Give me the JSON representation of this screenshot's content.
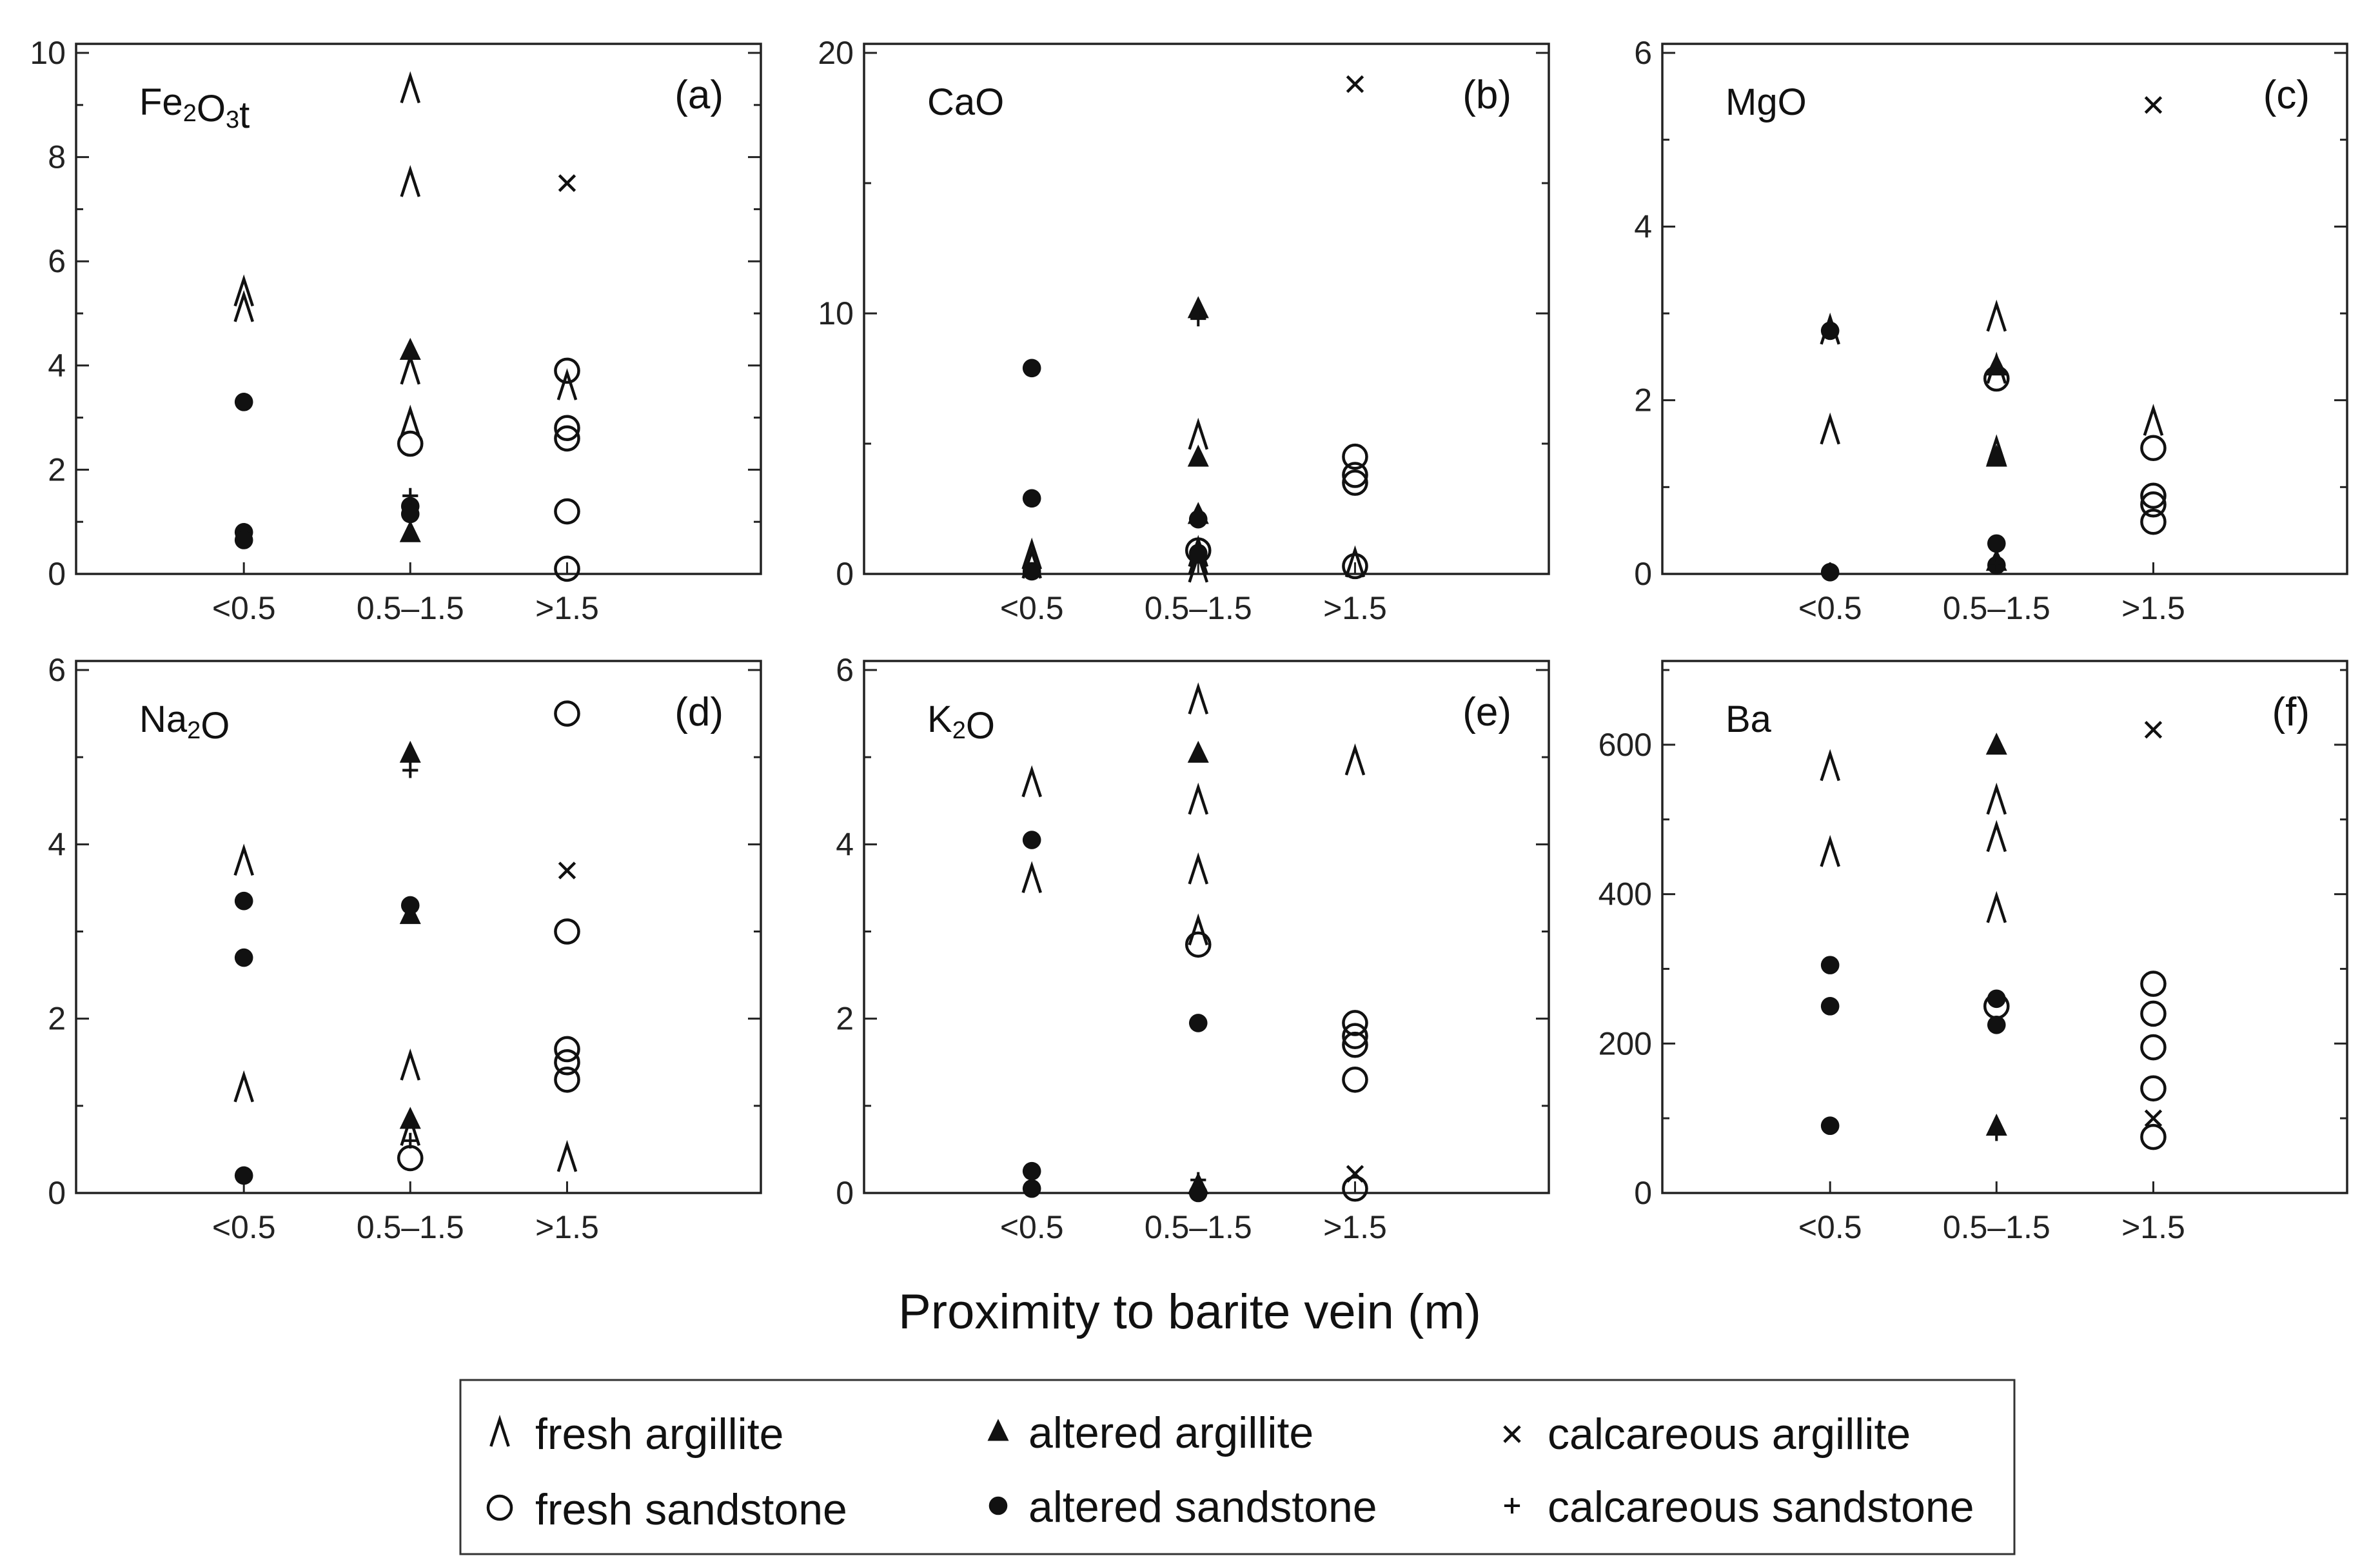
{
  "figure": {
    "xlabel": "Proximity to barite vein (m)",
    "categories": [
      "<0.5",
      "0.5–1.5",
      ">1.5"
    ]
  },
  "legend": [
    {
      "id": "fresh_argillite",
      "label": "fresh argillite",
      "symbol": "caret"
    },
    {
      "id": "altered_argillite",
      "label": "altered argillite",
      "symbol": "filled-triangle"
    },
    {
      "id": "calcareous_argillite",
      "label": "calcareous argillite",
      "symbol": "cross"
    },
    {
      "id": "fresh_sandstone",
      "label": "fresh sandstone",
      "symbol": "open-circle"
    },
    {
      "id": "altered_sandstone",
      "label": "altered sandstone",
      "symbol": "filled-circle"
    },
    {
      "id": "calcareous_sandstone",
      "label": "calcareous sandstone",
      "symbol": "plus"
    }
  ],
  "chart_data": [
    {
      "type": "scatter",
      "panel": "(a)",
      "title": "Fe2O3t",
      "title_parts": [
        {
          "t": "Fe"
        },
        {
          "t": "2",
          "sub": true
        },
        {
          "t": "O"
        },
        {
          "t": "3",
          "sub": true
        },
        {
          "t": "t"
        }
      ],
      "ylim": [
        0,
        10
      ],
      "yticks_major": [
        0,
        2,
        4,
        6,
        8,
        10
      ],
      "yticks_minor": [
        1,
        3,
        5,
        7,
        9
      ],
      "series": [
        {
          "name": "fresh argillite",
          "points": [
            [
              0,
              5.4
            ],
            [
              0,
              5.1
            ],
            [
              1,
              9.3
            ],
            [
              1,
              7.5
            ],
            [
              1,
              3.9
            ],
            [
              1,
              2.9
            ],
            [
              2,
              3.6
            ]
          ]
        },
        {
          "name": "altered argillite",
          "points": [
            [
              1,
              4.3
            ],
            [
              1,
              0.8
            ]
          ]
        },
        {
          "name": "calcareous argillite",
          "points": [
            [
              2,
              7.5
            ]
          ]
        },
        {
          "name": "fresh sandstone",
          "points": [
            [
              1,
              2.5
            ],
            [
              2,
              3.9
            ],
            [
              2,
              2.8
            ],
            [
              2,
              2.6
            ],
            [
              2,
              1.2
            ],
            [
              2,
              0.1
            ]
          ]
        },
        {
          "name": "altered sandstone",
          "points": [
            [
              0,
              3.3
            ],
            [
              0,
              0.8
            ],
            [
              0,
              0.65
            ],
            [
              1,
              1.3
            ],
            [
              1,
              1.15
            ]
          ]
        },
        {
          "name": "calcareous sandstone",
          "points": [
            [
              1,
              1.5
            ]
          ]
        }
      ]
    },
    {
      "type": "scatter",
      "panel": "(b)",
      "title": "CaO",
      "title_parts": [
        {
          "t": "CaO"
        }
      ],
      "ylim": [
        0,
        20
      ],
      "yticks_major": [
        0,
        10,
        20
      ],
      "yticks_minor": [
        5,
        15
      ],
      "series": [
        {
          "name": "fresh argillite",
          "points": [
            [
              0,
              0.7
            ],
            [
              0,
              0.35
            ],
            [
              1,
              5.3
            ],
            [
              1,
              0.8
            ],
            [
              1,
              0.5
            ],
            [
              1,
              0.2
            ],
            [
              2,
              0.4
            ]
          ]
        },
        {
          "name": "altered argillite",
          "points": [
            [
              1,
              10.2
            ],
            [
              1,
              4.5
            ],
            [
              1,
              2.3
            ]
          ]
        },
        {
          "name": "calcareous argillite",
          "points": [
            [
              2,
              18.8
            ]
          ]
        },
        {
          "name": "fresh sandstone",
          "points": [
            [
              1,
              0.9
            ],
            [
              2,
              4.5
            ],
            [
              2,
              3.8
            ],
            [
              2,
              3.5
            ],
            [
              2,
              0.3
            ]
          ]
        },
        {
          "name": "altered sandstone",
          "points": [
            [
              0,
              7.9
            ],
            [
              0,
              2.9
            ],
            [
              0,
              0.1
            ],
            [
              1,
              2.1
            ],
            [
              1,
              0.8
            ]
          ]
        },
        {
          "name": "calcareous sandstone",
          "points": [
            [
              1,
              9.8
            ]
          ]
        }
      ]
    },
    {
      "type": "scatter",
      "panel": "(c)",
      "title": "MgO",
      "title_parts": [
        {
          "t": "MgO"
        }
      ],
      "ylim": [
        0,
        6
      ],
      "yticks_major": [
        0,
        2,
        4,
        6
      ],
      "yticks_minor": [
        1,
        3,
        5
      ],
      "series": [
        {
          "name": "fresh argillite",
          "points": [
            [
              0,
              2.8
            ],
            [
              0,
              1.65
            ],
            [
              1,
              2.95
            ],
            [
              1,
              2.35
            ],
            [
              1,
              1.4
            ],
            [
              2,
              1.75
            ]
          ]
        },
        {
          "name": "altered argillite",
          "points": [
            [
              1,
              2.4
            ],
            [
              1,
              1.35
            ],
            [
              1,
              0.15
            ]
          ]
        },
        {
          "name": "calcareous argillite",
          "points": [
            [
              2,
              5.4
            ]
          ]
        },
        {
          "name": "fresh sandstone",
          "points": [
            [
              1,
              2.25
            ],
            [
              2,
              1.45
            ],
            [
              2,
              0.9
            ],
            [
              2,
              0.8
            ],
            [
              2,
              0.6
            ]
          ]
        },
        {
          "name": "altered sandstone",
          "points": [
            [
              0,
              2.8
            ],
            [
              0,
              0.02
            ],
            [
              1,
              0.35
            ],
            [
              1,
              0.1
            ]
          ]
        },
        {
          "name": "calcareous sandstone",
          "points": [
            [
              1,
              0.12
            ]
          ]
        }
      ]
    },
    {
      "type": "scatter",
      "panel": "(d)",
      "title": "Na2O",
      "title_parts": [
        {
          "t": "Na"
        },
        {
          "t": "2",
          "sub": true
        },
        {
          "t": "O"
        }
      ],
      "ylim": [
        0,
        6
      ],
      "yticks_major": [
        0,
        2,
        4,
        6
      ],
      "yticks_minor": [
        1,
        3,
        5
      ],
      "series": [
        {
          "name": "fresh argillite",
          "points": [
            [
              0,
              3.8
            ],
            [
              0,
              1.2
            ],
            [
              1,
              1.45
            ],
            [
              1,
              0.7
            ],
            [
              2,
              0.4
            ]
          ]
        },
        {
          "name": "altered argillite",
          "points": [
            [
              1,
              5.05
            ],
            [
              1,
              3.2
            ],
            [
              1,
              0.85
            ]
          ]
        },
        {
          "name": "calcareous argillite",
          "points": [
            [
              2,
              3.7
            ]
          ]
        },
        {
          "name": "fresh sandstone",
          "points": [
            [
              1,
              0.4
            ],
            [
              2,
              5.5
            ],
            [
              2,
              3.0
            ],
            [
              2,
              1.65
            ],
            [
              2,
              1.5
            ],
            [
              2,
              1.3
            ]
          ]
        },
        {
          "name": "altered sandstone",
          "points": [
            [
              0,
              3.35
            ],
            [
              0,
              2.7
            ],
            [
              0,
              0.2
            ],
            [
              1,
              3.3
            ]
          ]
        },
        {
          "name": "calcareous sandstone",
          "points": [
            [
              1,
              4.85
            ],
            [
              1,
              0.6
            ]
          ]
        }
      ]
    },
    {
      "type": "scatter",
      "panel": "(e)",
      "title": "K2O",
      "title_parts": [
        {
          "t": "K"
        },
        {
          "t": "2",
          "sub": true
        },
        {
          "t": "O"
        }
      ],
      "ylim": [
        0,
        6
      ],
      "yticks_major": [
        0,
        2,
        4,
        6
      ],
      "yticks_minor": [
        1,
        3,
        5
      ],
      "series": [
        {
          "name": "fresh argillite",
          "points": [
            [
              0,
              4.7
            ],
            [
              0,
              3.6
            ],
            [
              1,
              5.65
            ],
            [
              1,
              4.5
            ],
            [
              1,
              3.7
            ],
            [
              1,
              3.0
            ],
            [
              2,
              4.95
            ]
          ]
        },
        {
          "name": "altered argillite",
          "points": [
            [
              1,
              5.05
            ],
            [
              1,
              0.1
            ]
          ]
        },
        {
          "name": "calcareous argillite",
          "points": [
            [
              2,
              0.22
            ]
          ]
        },
        {
          "name": "fresh sandstone",
          "points": [
            [
              1,
              2.85
            ],
            [
              2,
              1.95
            ],
            [
              2,
              1.8
            ],
            [
              2,
              1.7
            ],
            [
              2,
              1.3
            ],
            [
              2,
              0.05
            ]
          ]
        },
        {
          "name": "altered sandstone",
          "points": [
            [
              0,
              4.05
            ],
            [
              0,
              0.25
            ],
            [
              0,
              0.05
            ],
            [
              1,
              1.95
            ],
            [
              1,
              0.0
            ]
          ]
        },
        {
          "name": "calcareous sandstone",
          "points": [
            [
              1,
              0.15
            ]
          ]
        }
      ]
    },
    {
      "type": "scatter",
      "panel": "(f)",
      "title": "Ba",
      "title_parts": [
        {
          "t": "Ba"
        }
      ],
      "ylim": [
        0,
        700
      ],
      "yticks_major": [
        0,
        200,
        400,
        600
      ],
      "yticks_minor": [
        100,
        300,
        500,
        700
      ],
      "series": [
        {
          "name": "fresh argillite",
          "points": [
            [
              0,
              570
            ],
            [
              0,
              455
            ],
            [
              1,
              525
            ],
            [
              1,
              475
            ],
            [
              1,
              380
            ]
          ]
        },
        {
          "name": "altered argillite",
          "points": [
            [
              1,
              600
            ],
            [
              1,
              90
            ]
          ]
        },
        {
          "name": "calcareous argillite",
          "points": [
            [
              2,
              620
            ],
            [
              2,
              100
            ]
          ]
        },
        {
          "name": "fresh sandstone",
          "points": [
            [
              1,
              250
            ],
            [
              2,
              280
            ],
            [
              2,
              240
            ],
            [
              2,
              195
            ],
            [
              2,
              140
            ],
            [
              2,
              75
            ]
          ]
        },
        {
          "name": "altered sandstone",
          "points": [
            [
              0,
              305
            ],
            [
              0,
              250
            ],
            [
              0,
              90
            ],
            [
              1,
              260
            ],
            [
              1,
              225
            ]
          ]
        },
        {
          "name": "calcareous sandstone",
          "points": [
            [
              1,
              80
            ]
          ]
        }
      ]
    }
  ]
}
